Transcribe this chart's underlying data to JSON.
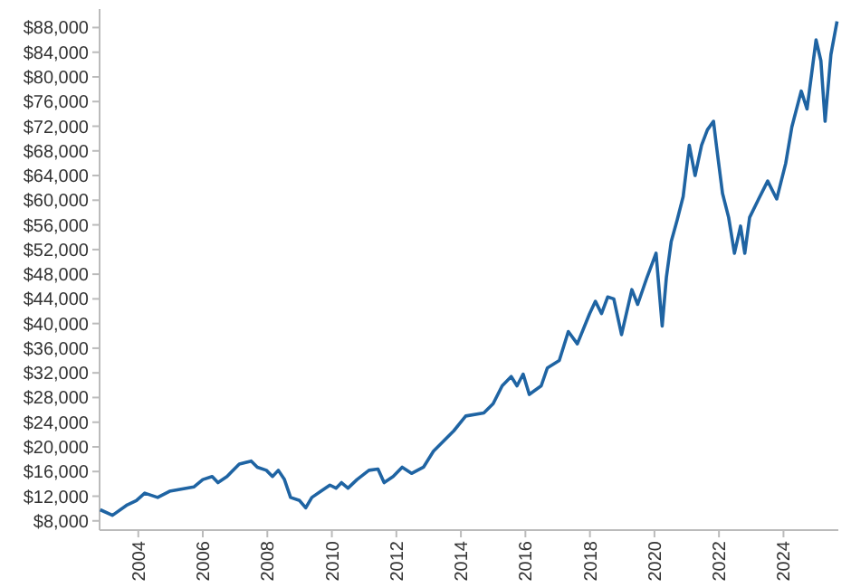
{
  "chart_data": {
    "type": "line",
    "xlim": [
      2002.8,
      2025.7
    ],
    "ylim": [
      6500,
      91000
    ],
    "xticks": [
      2004,
      2006,
      2008,
      2010,
      2012,
      2014,
      2016,
      2018,
      2020,
      2022,
      2024
    ],
    "yticks": [
      {
        "value": 8000,
        "label": "$8,000"
      },
      {
        "value": 12000,
        "label": "$12,000"
      },
      {
        "value": 16000,
        "label": "$16,000"
      },
      {
        "value": 20000,
        "label": "$20,000"
      },
      {
        "value": 24000,
        "label": "$24,000"
      },
      {
        "value": 28000,
        "label": "$28,000"
      },
      {
        "value": 32000,
        "label": "$32,000"
      },
      {
        "value": 36000,
        "label": "$36,000"
      },
      {
        "value": 40000,
        "label": "$40,000"
      },
      {
        "value": 44000,
        "label": "$44,000"
      },
      {
        "value": 48000,
        "label": "$48,000"
      },
      {
        "value": 52000,
        "label": "$52,000"
      },
      {
        "value": 56000,
        "label": "$56,000"
      },
      {
        "value": 60000,
        "label": "$60,000"
      },
      {
        "value": 64000,
        "label": "$64,000"
      },
      {
        "value": 68000,
        "label": "$68,000"
      },
      {
        "value": 72000,
        "label": "$72,000"
      },
      {
        "value": 76000,
        "label": "$76,000"
      },
      {
        "value": 80000,
        "label": "$80,000"
      },
      {
        "value": 84000,
        "label": "$84,000"
      },
      {
        "value": 88000,
        "label": "$88,000"
      }
    ],
    "marker": "none",
    "line_style": "solid",
    "series": [
      {
        "color": "#1f64a3",
        "x": [
          2002.82,
          2003.2,
          2003.66,
          2003.94,
          2004.2,
          2004.6,
          2004.97,
          2005.72,
          2006.0,
          2006.29,
          2006.47,
          2006.75,
          2007.13,
          2007.5,
          2007.69,
          2007.97,
          2008.16,
          2008.34,
          2008.53,
          2008.72,
          2009.0,
          2009.19,
          2009.38,
          2009.66,
          2009.94,
          2010.13,
          2010.3,
          2010.5,
          2010.78,
          2011.15,
          2011.43,
          2011.62,
          2011.9,
          2012.18,
          2012.47,
          2012.84,
          2013.15,
          2013.78,
          2014.15,
          2014.71,
          2015.0,
          2015.28,
          2015.56,
          2015.74,
          2015.93,
          2016.12,
          2016.49,
          2016.68,
          2017.05,
          2017.33,
          2017.61,
          2017.99,
          2018.17,
          2018.36,
          2018.55,
          2018.74,
          2018.98,
          2019.3,
          2019.48,
          2019.77,
          2020.05,
          2020.24,
          2020.37,
          2020.52,
          2020.7,
          2020.89,
          2021.08,
          2021.26,
          2021.46,
          2021.64,
          2021.83,
          2021.92,
          2022.11,
          2022.3,
          2022.48,
          2022.67,
          2022.8,
          2022.95,
          2023.23,
          2023.51,
          2023.79,
          2024.07,
          2024.26,
          2024.55,
          2024.73,
          2025.01,
          2025.16,
          2025.29,
          2025.47,
          2025.66
        ],
        "values": [
          9800,
          8900,
          10600,
          11300,
          12500,
          11800,
          12800,
          13500,
          14700,
          15200,
          14200,
          15200,
          17200,
          17700,
          16700,
          16200,
          15200,
          16200,
          14700,
          11800,
          11300,
          10100,
          11800,
          12800,
          13800,
          13300,
          14200,
          13300,
          14700,
          16200,
          16400,
          14200,
          15200,
          16700,
          15700,
          16700,
          19300,
          22600,
          25000,
          25500,
          27000,
          29900,
          31400,
          29900,
          31800,
          28500,
          29900,
          32800,
          34000,
          38700,
          36700,
          41600,
          43600,
          41600,
          44300,
          44000,
          38200,
          45500,
          43100,
          47500,
          51400,
          39600,
          47500,
          53300,
          56700,
          60600,
          68900,
          64000,
          68900,
          71400,
          72800,
          68900,
          61100,
          57200,
          51400,
          55800,
          51400,
          57200,
          60200,
          63100,
          60200,
          66000,
          71900,
          77700,
          74800,
          86000,
          82600,
          72800,
          83600,
          89000
        ]
      }
    ]
  }
}
